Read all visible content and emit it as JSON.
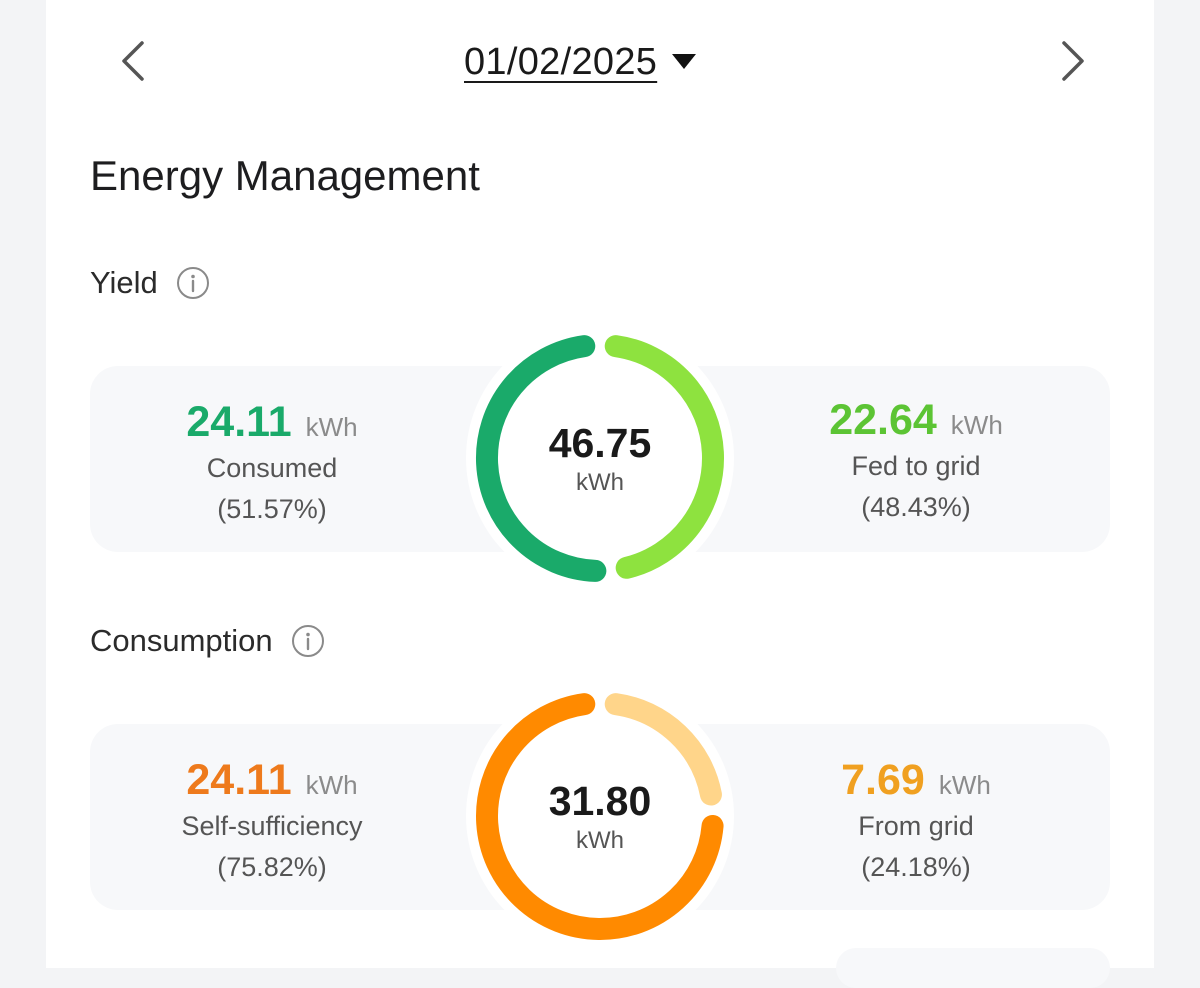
{
  "header": {
    "date": "01/02/2025"
  },
  "page_title": "Energy Management",
  "yield": {
    "label": "Yield",
    "total_value": "46.75",
    "total_unit": "kWh",
    "consumed": {
      "value": "24.11",
      "unit": "kWh",
      "label": "Consumed",
      "percent": "(51.57%)",
      "fraction": 0.5157
    },
    "fed_to_grid": {
      "value": "22.64",
      "unit": "kWh",
      "label": "Fed to grid",
      "percent": "(48.43%)",
      "fraction": 0.4843
    },
    "colors": {
      "consumed": "#1aaa6a",
      "fed_to_grid": "#8ee23f"
    }
  },
  "consumption": {
    "label": "Consumption",
    "total_value": "31.80",
    "total_unit": "kWh",
    "self_sufficiency": {
      "value": "24.11",
      "unit": "kWh",
      "label": "Self-sufficiency",
      "percent": "(75.82%)",
      "fraction": 0.7582
    },
    "from_grid": {
      "value": "7.69",
      "unit": "kWh",
      "label": "From grid",
      "percent": "(24.18%)",
      "fraction": 0.2418
    },
    "colors": {
      "self_sufficiency": "#ff8a00",
      "from_grid": "#ffd58a",
      "self_sufficiency_text": "#ee7a1c",
      "from_grid_text": "#f0a020"
    }
  },
  "icons": {
    "prev": "chevron-left-icon",
    "next": "chevron-right-icon",
    "dropdown": "caret-down-icon",
    "info": "info-circle-icon"
  }
}
